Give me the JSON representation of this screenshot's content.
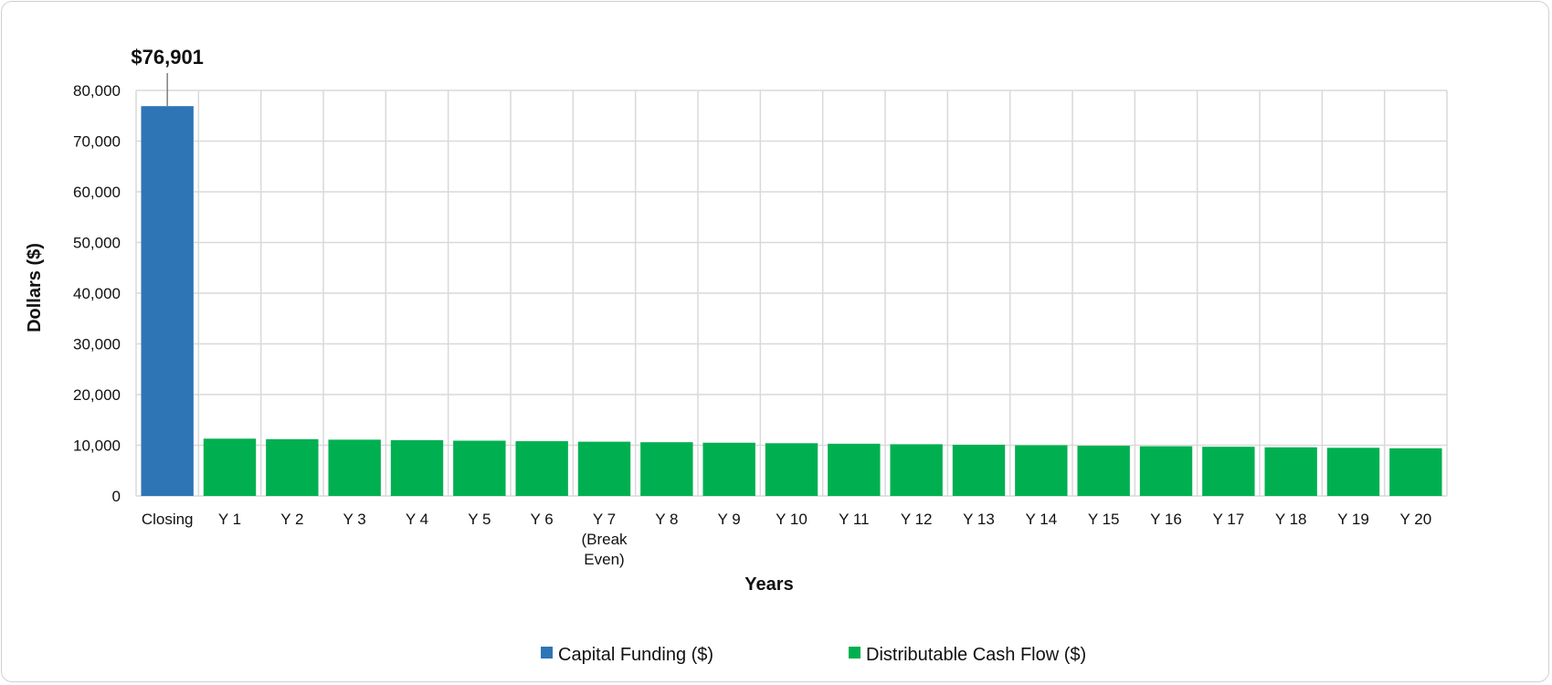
{
  "chart_data": {
    "type": "bar",
    "categories": [
      "Closing",
      "Y 1",
      "Y 2",
      "Y 3",
      "Y 4",
      "Y 5",
      "Y 6",
      "Y 7 (Break Even)",
      "Y 8",
      "Y 9",
      "Y 10",
      "Y 11",
      "Y 12",
      "Y 13",
      "Y 14",
      "Y 15",
      "Y 16",
      "Y 17",
      "Y 18",
      "Y 19",
      "Y 20"
    ],
    "category_lines": [
      [
        "Closing"
      ],
      [
        "Y 1"
      ],
      [
        "Y 2"
      ],
      [
        "Y 3"
      ],
      [
        "Y 4"
      ],
      [
        "Y 5"
      ],
      [
        "Y 6"
      ],
      [
        "Y 7",
        "(Break",
        "Even)"
      ],
      [
        "Y 8"
      ],
      [
        "Y 9"
      ],
      [
        "Y 10"
      ],
      [
        "Y 11"
      ],
      [
        "Y 12"
      ],
      [
        "Y 13"
      ],
      [
        "Y 14"
      ],
      [
        "Y 15"
      ],
      [
        "Y 16"
      ],
      [
        "Y 17"
      ],
      [
        "Y 18"
      ],
      [
        "Y 19"
      ],
      [
        "Y 20"
      ]
    ],
    "series": [
      {
        "name": "Capital Funding ($)",
        "color": "#2e75b6",
        "values": [
          76901,
          null,
          null,
          null,
          null,
          null,
          null,
          null,
          null,
          null,
          null,
          null,
          null,
          null,
          null,
          null,
          null,
          null,
          null,
          null,
          null
        ]
      },
      {
        "name": "Distributable Cash Flow ($)",
        "color": "#00b050",
        "values": [
          null,
          11300,
          11200,
          11100,
          11000,
          10900,
          10800,
          10700,
          10600,
          10500,
          10400,
          10300,
          10200,
          10100,
          10000,
          9900,
          9800,
          9700,
          9600,
          9500,
          9400
        ]
      }
    ],
    "data_labels": [
      {
        "category": "Closing",
        "series": "Capital Funding ($)",
        "text": "$76,901"
      }
    ],
    "xlabel": "Years",
    "ylabel": "Dollars ($)",
    "ylim": [
      0,
      80000
    ],
    "yticks": [
      0,
      10000,
      20000,
      30000,
      40000,
      50000,
      60000,
      70000,
      80000
    ],
    "ytick_labels": [
      "0",
      "10,000",
      "20,000",
      "30,000",
      "40,000",
      "50,000",
      "60,000",
      "70,000",
      "80,000"
    ],
    "grid": true,
    "legend_position": "bottom"
  }
}
